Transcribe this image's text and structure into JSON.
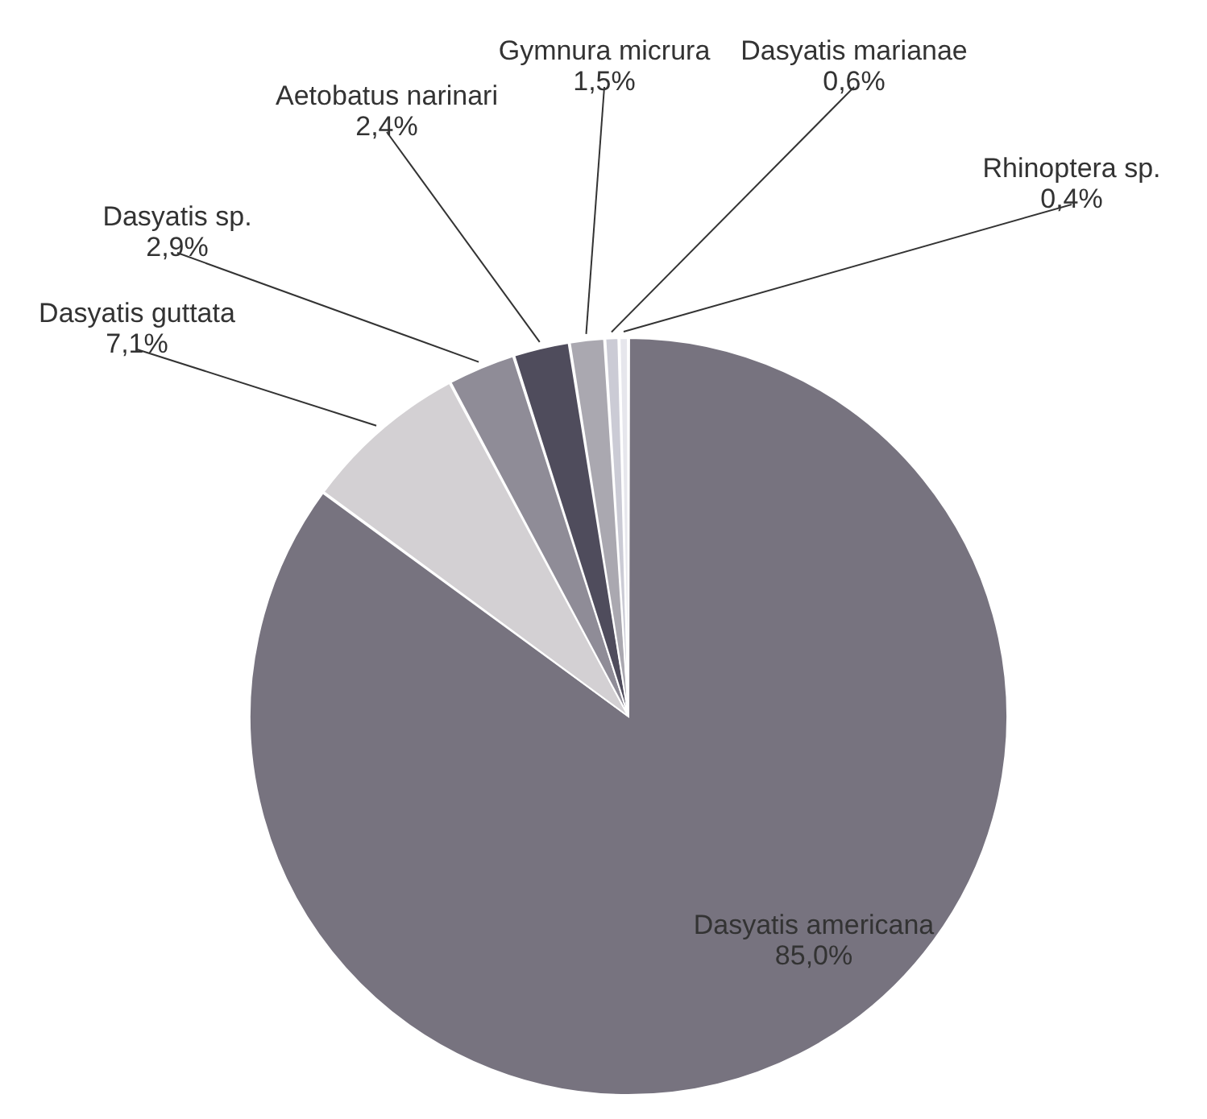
{
  "chart_data": {
    "type": "pie",
    "categories": [
      "Dasyatis americana",
      "Dasyatis guttata",
      "Dasyatis sp.",
      "Aetobatus narinari",
      "Gymnura micrura",
      "Dasyatis marianae",
      "Rhinoptera sp."
    ],
    "values": [
      85.0,
      7.1,
      2.9,
      2.4,
      1.5,
      0.6,
      0.4
    ],
    "colors": [
      "#77737f",
      "#d3d0d3",
      "#8f8c97",
      "#4f4c5c",
      "#aaa8b0",
      "#cbcbd5",
      "#e6e6ec"
    ],
    "value_labels": [
      "85,0%",
      "7,1%",
      "2,9%",
      "2,4%",
      "1,5%",
      "0,6%",
      "0,4%"
    ]
  }
}
